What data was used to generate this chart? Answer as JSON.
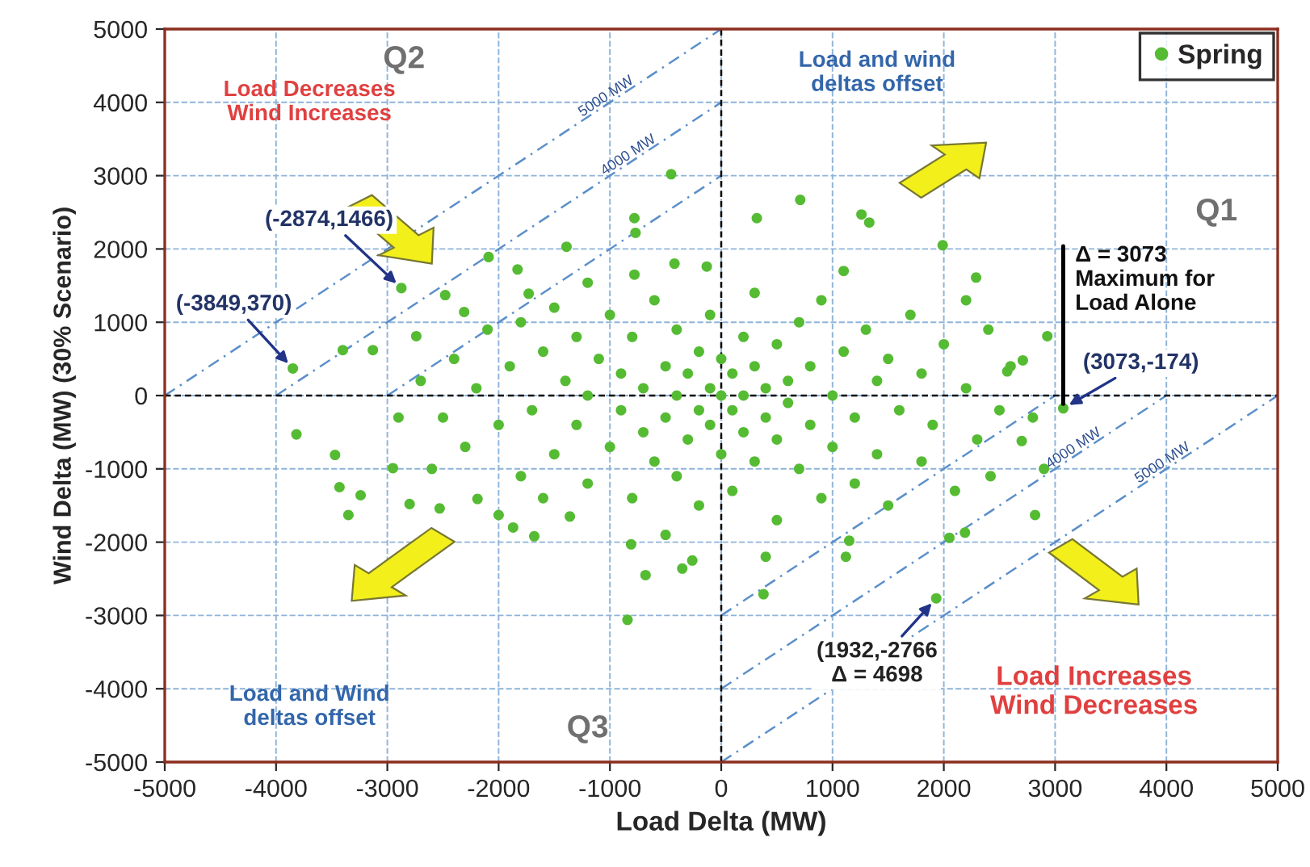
{
  "chart_data": {
    "type": "scatter",
    "xlabel": "Load Delta (MW)",
    "ylabel": "Wind Delta (MW) (30% Scenario)",
    "xlim": [
      -5000,
      5000
    ],
    "ylim": [
      -5000,
      5000
    ],
    "xticks": [
      -5000,
      -4000,
      -3000,
      -2000,
      -1000,
      0,
      1000,
      2000,
      3000,
      4000,
      5000
    ],
    "yticks": [
      -5000,
      -4000,
      -3000,
      -2000,
      -1000,
      0,
      1000,
      2000,
      3000,
      4000,
      5000
    ],
    "grid": true,
    "legend": "top right",
    "marker": "circle",
    "series": [
      {
        "name": "Spring",
        "color": "#55bb33",
        "x": [
          -3849,
          -2874,
          3073,
          1932,
          -3817,
          -842,
          -450,
          320,
          710,
          1260,
          1330,
          1990,
          2290,
          -780,
          -770,
          -1390,
          -2090,
          2930,
          2710,
          2570,
          2700,
          2420,
          2820,
          2190,
          2050,
          1150,
          1120,
          380,
          -3470,
          -3430,
          -3350,
          -3240,
          -2950,
          -2800,
          -2530,
          -2190,
          -2000,
          -1870,
          -1680,
          -1360,
          -810,
          -680,
          -350,
          -260,
          -3400,
          -2480,
          -3130,
          -2740,
          -2310,
          -1830,
          -1730,
          -1200,
          -780,
          -420,
          -130,
          -2700,
          -2500,
          -2400,
          -2300,
          -2200,
          -2100,
          -2000,
          -1900,
          -1800,
          -1800,
          -1700,
          -1600,
          -1500,
          -1500,
          -1400,
          -1300,
          -1300,
          -1200,
          -1200,
          -1100,
          -1000,
          -1000,
          -900,
          -900,
          -800,
          -800,
          -700,
          -700,
          -600,
          -600,
          -500,
          -500,
          -400,
          -400,
          -400,
          -300,
          -300,
          -200,
          -200,
          -200,
          -100,
          -100,
          -100,
          0,
          0,
          0,
          100,
          100,
          100,
          200,
          200,
          200,
          300,
          300,
          300,
          400,
          400,
          500,
          500,
          500,
          600,
          600,
          700,
          700,
          800,
          800,
          900,
          900,
          1000,
          1000,
          1100,
          1200,
          1200,
          1300,
          1400,
          1400,
          1500,
          1500,
          1600,
          1700,
          1800,
          1800,
          1900,
          2000,
          2100,
          2200,
          2300,
          2400,
          2500,
          2600,
          2800,
          2900,
          2200,
          -2600,
          -1600,
          -500,
          400,
          1100,
          -2900
        ],
        "values": [
          370,
          1466,
          -174,
          -2766,
          -530,
          -3060,
          3020,
          2420,
          2670,
          2470,
          2360,
          2050,
          1610,
          2420,
          2220,
          2030,
          1890,
          810,
          480,
          330,
          -620,
          -1100,
          -1630,
          -1870,
          -1940,
          -1980,
          -2200,
          -2710,
          -810,
          -1250,
          -1630,
          -1360,
          -990,
          -1480,
          -1540,
          -1410,
          -1630,
          -1800,
          -1920,
          -1650,
          -2030,
          -2450,
          -2360,
          -2250,
          620,
          1370,
          620,
          810,
          1140,
          1720,
          1390,
          1540,
          1650,
          1800,
          1760,
          200,
          -300,
          500,
          -700,
          100,
          900,
          -400,
          400,
          -1100,
          1000,
          -200,
          600,
          -800,
          1200,
          200,
          -400,
          800,
          -1200,
          0,
          500,
          -700,
          1100,
          -200,
          300,
          -1400,
          800,
          -500,
          100,
          1300,
          -900,
          400,
          -300,
          0,
          -1100,
          900,
          -600,
          300,
          -200,
          600,
          -1500,
          100,
          -400,
          1100,
          -800,
          0,
          500,
          -200,
          300,
          -1300,
          800,
          -500,
          0,
          -900,
          400,
          1400,
          -300,
          100,
          -1700,
          700,
          -600,
          200,
          -100,
          1000,
          -1000,
          -400,
          400,
          -1400,
          1300,
          0,
          -700,
          600,
          -300,
          -1200,
          900,
          200,
          -800,
          -1500,
          500,
          -200,
          1100,
          -900,
          300,
          -400,
          700,
          -1300,
          100,
          -600,
          900,
          -200,
          400,
          -300,
          -1000,
          1300,
          -1000,
          -1400,
          -1900,
          -2200,
          1700,
          -300
        ]
      },
      {
        "type": "line",
        "name": "5000 MW",
        "color": "#5b8fc9",
        "line_style": "dashed",
        "marker": "none",
        "x": [
          -5000,
          0
        ],
        "values": [
          0,
          5000
        ]
      },
      {
        "type": "line",
        "name": "4000 MW",
        "color": "#5b8fc9",
        "line_style": "dashed",
        "marker": "none",
        "x": [
          -4000,
          0
        ],
        "values": [
          0,
          4000
        ]
      },
      {
        "type": "line",
        "color": "#5b8fc9",
        "line_style": "dashed",
        "marker": "none",
        "x": [
          -3000,
          0
        ],
        "values": [
          0,
          3000
        ]
      },
      {
        "type": "line",
        "color": "#5b8fc9",
        "line_style": "dashed",
        "marker": "none",
        "x": [
          0,
          3000
        ],
        "values": [
          -3000,
          0
        ]
      },
      {
        "type": "line",
        "name": "4000 MW",
        "color": "#5b8fc9",
        "line_style": "dashed",
        "marker": "none",
        "x": [
          0,
          4000
        ],
        "values": [
          -4000,
          0
        ]
      },
      {
        "type": "line",
        "name": "5000 MW",
        "color": "#5b8fc9",
        "line_style": "dashed",
        "marker": "none",
        "x": [
          0,
          5000
        ],
        "values": [
          -5000,
          0
        ]
      },
      {
        "type": "line",
        "color": "#000000",
        "line_style": "dotted",
        "marker": "none",
        "x": [
          0,
          0
        ],
        "values": [
          -5000,
          5000
        ]
      },
      {
        "type": "line",
        "color": "#000000",
        "line_style": "dotted",
        "marker": "none",
        "x": [
          -5000,
          5000
        ],
        "values": [
          0,
          0
        ]
      }
    ],
    "annotations": [
      "Q2",
      "Q1",
      "Q3",
      "Load Decreases\nWind Increases",
      "Load and wind\ndeltas offset",
      "Load and Wind\ndeltas offset",
      "Load Increases\nWind Decreases",
      {
        "text": "(-2874,1466)",
        "x": -2874,
        "y": 1466
      },
      {
        "text": "(-3849,370)",
        "x": -3849,
        "y": 370
      },
      {
        "text": "(3073,-174)",
        "x": 3073,
        "y": -174
      },
      {
        "text": "(1932,-2766\nΔ = 4698",
        "x": 1932,
        "y": -2766
      },
      {
        "text": "Δ = 3073\nMaximum for\nLoad Alone",
        "x": 3073,
        "y": -174
      }
    ]
  }
}
